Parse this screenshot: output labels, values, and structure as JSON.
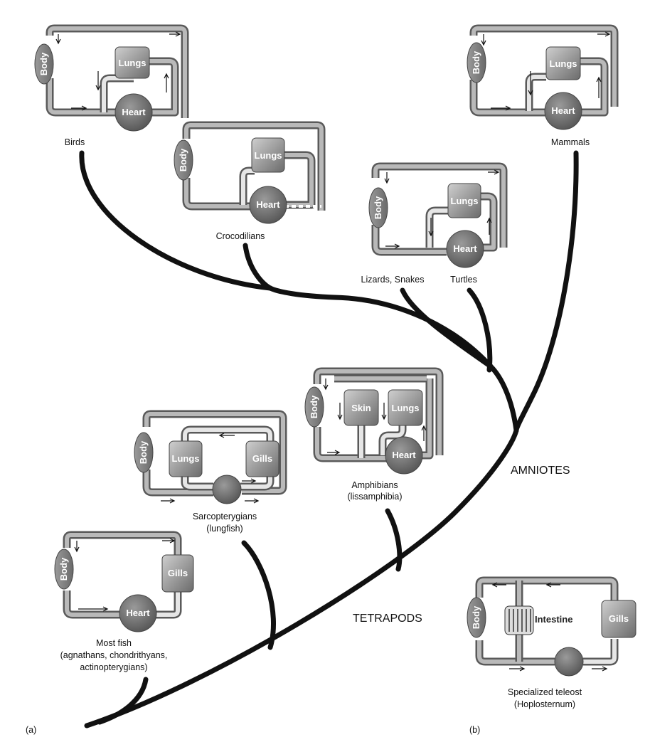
{
  "organs": {
    "body": "Body",
    "lungs": "Lungs",
    "heart": "Heart",
    "gills": "Gills",
    "skin": "Skin",
    "intestine": "Intestine"
  },
  "taxa": {
    "birds": "Birds",
    "mammals": "Mammals",
    "crocodilians": "Crocodilians",
    "lizards_snakes": "Lizards, Snakes",
    "turtles": "Turtles",
    "amphibians_1": "Amphibians",
    "amphibians_2": "(lissamphibia)",
    "sarco_1": "Sarcopterygians",
    "sarco_2": "(lungfish)",
    "fish_1": "Most fish",
    "fish_2": "(agnathans, chondrithyans,",
    "fish_3": "actinopterygians)",
    "teleost_1": "Specialized teleost",
    "teleost_2": "(Hoplosternum)"
  },
  "clades": {
    "amniotes": "AMNIOTES",
    "tetrapods": "TETRAPODS"
  },
  "panels": {
    "a": "(a)",
    "b": "(b)"
  }
}
